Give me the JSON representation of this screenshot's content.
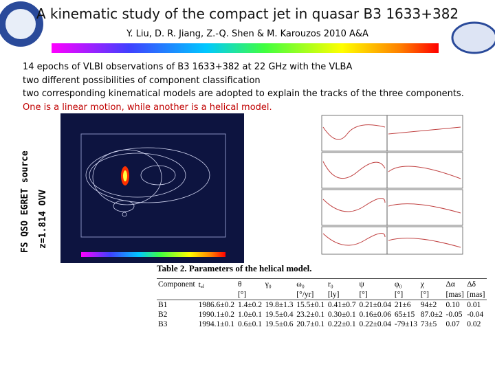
{
  "header": {
    "title": "A kinematic study of the compact jet in quasar B3 1633+382",
    "authors": "Y. Liu, D. R. Jiang, Z.-Q. Shen & M. Karouzos 2010 A&A"
  },
  "body": {
    "lines": [
      "14 epochs of VLBI observations of B3 1633+382 at 22 GHz with the VLBA",
      "two different possibilities of component classification",
      "two corresponding kinematical models are adopted to explain the tracks of the three components.",
      "One is a linear motion, while another is a helical model."
    ],
    "side_labels": [
      "FS QSO EGRET source",
      "z=1.814 OVV"
    ]
  },
  "table": {
    "caption": "Table 2. Parameters of the helical model.",
    "header": [
      "Component",
      "tₑⱼ",
      "θ",
      "γ₀",
      "ω₀",
      "r₀",
      "ψ",
      "φ₀",
      "χ",
      "Δα",
      "Δδ"
    ],
    "units": [
      "",
      "",
      "[°]",
      "",
      "[°/yr]",
      "[ly]",
      "[°]",
      "[°]",
      "[°]",
      "[mas]",
      "[mas]"
    ],
    "rows": [
      [
        "B1",
        "1986.6±0.2",
        "1.4±0.2",
        "19.8±1.3",
        "15.5±0.1",
        "0.41±0.7",
        "0.21±0.04",
        "21±6",
        "94±2",
        "0.10",
        "0.01"
      ],
      [
        "B2",
        "1990.1±0.2",
        "1.0±0.1",
        "19.5±0.4",
        "23.2±0.1",
        "0.30±0.1",
        "0.16±0.06",
        "65±15",
        "87.0±2",
        "-0.05",
        "-0.04"
      ],
      [
        "B3",
        "1994.1±0.1",
        "0.6±0.1",
        "19.5±0.6",
        "20.7±0.1",
        "0.22±0.1",
        "0.22±0.04",
        "-79±13",
        "73±5",
        "0.07",
        "0.02"
      ]
    ]
  }
}
